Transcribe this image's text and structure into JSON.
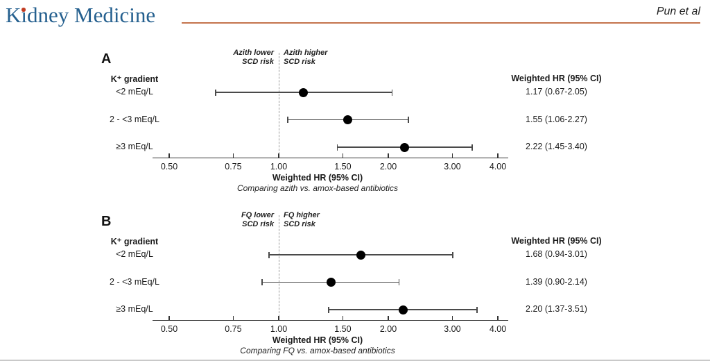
{
  "header": {
    "journal": "Kidney Medicine",
    "authors": "Pun et al",
    "colors": {
      "brand_blue": "#25608f",
      "rule_orange": "#c4734c",
      "logo_dot_red": "#c13b21",
      "ci_gray": "#4a4a4a",
      "reference_dash_gray": "#999999",
      "point_black": "#000000"
    }
  },
  "chart_data": [
    {
      "type": "scatter",
      "chart_kind": "forest-plot",
      "panel_label": "A",
      "direction_labels": {
        "lower": [
          "Azith lower",
          "SCD risk"
        ],
        "higher": [
          "Azith higher",
          "SCD risk"
        ]
      },
      "group_header": "K⁺ gradient",
      "value_column_header": "Weighted HR (95% CI)",
      "rows": [
        {
          "category": "<2 mEq/L",
          "hr": 1.17,
          "ci_low": 0.67,
          "ci_high": 2.05,
          "label": "1.17 (0.67-2.05)"
        },
        {
          "category": "2 - <3 mEq/L",
          "hr": 1.55,
          "ci_low": 1.06,
          "ci_high": 2.27,
          "label": "1.55 (1.06-2.27)"
        },
        {
          "category": "≥3 mEq/L",
          "hr": 2.22,
          "ci_low": 1.45,
          "ci_high": 3.4,
          "label": "2.22 (1.45-3.40)"
        }
      ],
      "axis": {
        "scale": "log",
        "xlim": [
          0.45,
          4.35
        ],
        "ticks": [
          0.5,
          0.75,
          1.0,
          1.5,
          2.0,
          3.0,
          4.0
        ],
        "tick_labels": [
          "0.50",
          "0.75",
          "1.00",
          "1.50",
          "2.00",
          "3.00",
          "4.00"
        ],
        "reference_line": 1.0,
        "label": "Weighted HR (95% CI)",
        "subtitle": "Comparing azith vs. amox-based antibiotics"
      }
    },
    {
      "type": "scatter",
      "chart_kind": "forest-plot",
      "panel_label": "B",
      "direction_labels": {
        "lower": [
          "FQ lower",
          "SCD risk"
        ],
        "higher": [
          "FQ higher",
          "SCD risk"
        ]
      },
      "group_header": "K⁺ gradient",
      "value_column_header": "Weighted HR (95% CI)",
      "rows": [
        {
          "category": "<2 mEq/L",
          "hr": 1.68,
          "ci_low": 0.94,
          "ci_high": 3.01,
          "label": "1.68 (0.94-3.01)"
        },
        {
          "category": "2 - <3 mEq/L",
          "hr": 1.39,
          "ci_low": 0.9,
          "ci_high": 2.14,
          "label": "1.39 (0.90-2.14)"
        },
        {
          "category": "≥3 mEq/L",
          "hr": 2.2,
          "ci_low": 1.37,
          "ci_high": 3.51,
          "label": "2.20 (1.37-3.51)"
        }
      ],
      "axis": {
        "scale": "log",
        "xlim": [
          0.45,
          4.35
        ],
        "ticks": [
          0.5,
          0.75,
          1.0,
          1.5,
          2.0,
          3.0,
          4.0
        ],
        "tick_labels": [
          "0.50",
          "0.75",
          "1.00",
          "1.50",
          "2.00",
          "3.00",
          "4.00"
        ],
        "reference_line": 1.0,
        "label": "Weighted HR (95% CI)",
        "subtitle": "Comparing FQ vs. amox-based antibiotics"
      }
    }
  ]
}
